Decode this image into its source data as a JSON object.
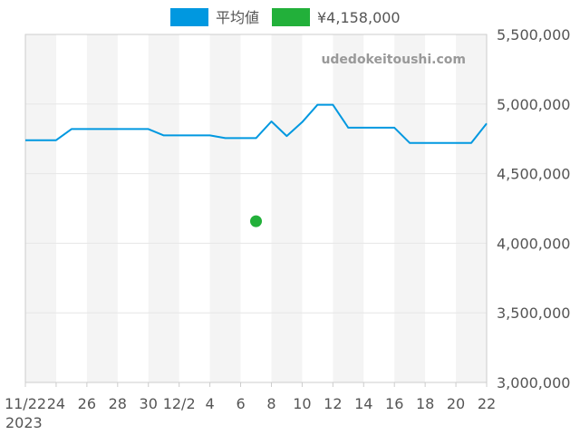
{
  "chart_data": {
    "type": "line",
    "watermark": "udedokeitoushi.com",
    "legend": {
      "placement": "top-center",
      "entries": [
        {
          "label": "平均値",
          "color": "#0098e0"
        },
        {
          "label": "¥4,158,000",
          "color": "#22b03a"
        }
      ]
    },
    "x_ticks": [
      "11/22",
      "24",
      "26",
      "28",
      "30",
      "12/2",
      "4",
      "6",
      "8",
      "10",
      "12",
      "14",
      "16",
      "18",
      "20",
      "22"
    ],
    "x_year_label": "2023",
    "y_ticks": [
      "3,000,000",
      "3,500,000",
      "4,000,000",
      "4,500,000",
      "5,000,000",
      "5,500,000"
    ],
    "ylim": [
      3000000,
      5500000
    ],
    "x_range_days": [
      0,
      30
    ],
    "series": [
      {
        "name": "平均値",
        "color": "#0098e0",
        "x": [
          0,
          2,
          3,
          8,
          9,
          12,
          13,
          15,
          16,
          17,
          18,
          19,
          20,
          21,
          22,
          24,
          25,
          29,
          30
        ],
        "y": [
          4740000,
          4740000,
          4820000,
          4820000,
          4775000,
          4775000,
          4755000,
          4755000,
          4875000,
          4770000,
          4870000,
          4995000,
          4995000,
          4830000,
          4830000,
          4830000,
          4720000,
          4720000,
          4860000
        ]
      },
      {
        "name": "¥4,158,000",
        "color": "#22b03a",
        "type": "scatter",
        "x": [
          15
        ],
        "y": [
          4158000
        ]
      }
    ]
  }
}
